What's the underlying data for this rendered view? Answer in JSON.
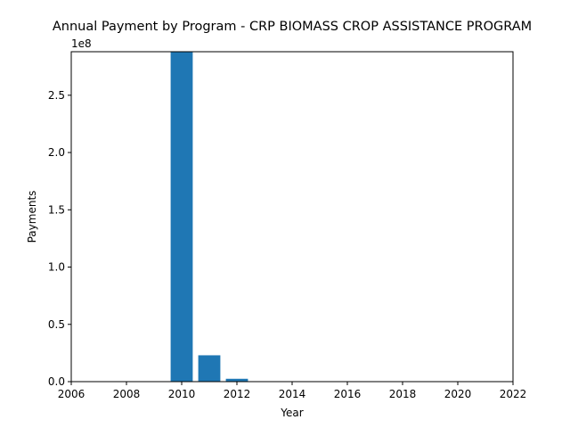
{
  "chart_data": {
    "type": "bar",
    "title": "Annual Payment by Program - CRP BIOMASS CROP ASSISTANCE PROGRAM",
    "xlabel": "Year",
    "ylabel": "Payments",
    "y_offset_label": "1e8",
    "xlim": [
      2006,
      2022
    ],
    "ylim": [
      0,
      288000000
    ],
    "x_ticks": [
      2006,
      2008,
      2010,
      2012,
      2014,
      2016,
      2018,
      2020,
      2022
    ],
    "y_ticks": [
      {
        "value": 0,
        "label": "0.0"
      },
      {
        "value": 50000000,
        "label": "0.5"
      },
      {
        "value": 100000000,
        "label": "1.0"
      },
      {
        "value": 150000000,
        "label": "1.5"
      },
      {
        "value": 200000000,
        "label": "2.0"
      },
      {
        "value": 250000000,
        "label": "2.5"
      }
    ],
    "bar_width_years": 0.8,
    "bar_color": "#1f77b4",
    "grid": false,
    "series": [
      {
        "x": [
          2010,
          2011,
          2012
        ],
        "values": [
          288000000,
          23000000,
          2500000
        ]
      }
    ]
  }
}
